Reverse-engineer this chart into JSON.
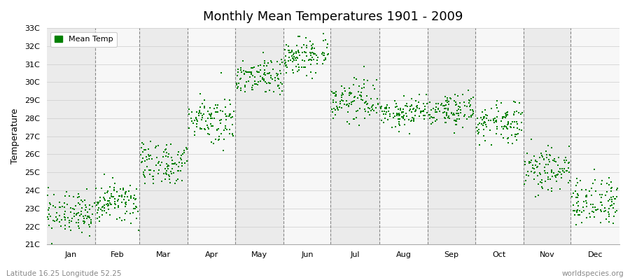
{
  "title": "Monthly Mean Temperatures 1901 - 2009",
  "ylabel": "Temperature",
  "xlabel_labels": [
    "Jan",
    "Feb",
    "Mar",
    "Apr",
    "May",
    "Jun",
    "Jul",
    "Aug",
    "Sep",
    "Oct",
    "Nov",
    "Dec"
  ],
  "ytick_labels": [
    "21C",
    "22C",
    "23C",
    "24C",
    "25C",
    "26C",
    "27C",
    "28C",
    "29C",
    "30C",
    "31C",
    "32C",
    "33C"
  ],
  "ytick_values": [
    21,
    22,
    23,
    24,
    25,
    26,
    27,
    28,
    29,
    30,
    31,
    32,
    33
  ],
  "ylim": [
    21,
    33
  ],
  "xlim": [
    0,
    365
  ],
  "dot_color": "#008000",
  "dot_size": 3,
  "background_color": "#ffffff",
  "band_colors": [
    "#ebebeb",
    "#f7f7f7"
  ],
  "grid_color": "#888888",
  "subtitle_left": "Latitude 16.25 Longitude 52.25",
  "subtitle_right": "worldspecies.org",
  "legend_label": "Mean Temp",
  "monthly_means": [
    22.7,
    23.3,
    25.5,
    28.0,
    30.3,
    31.5,
    29.0,
    28.3,
    28.4,
    27.8,
    25.2,
    23.4
  ],
  "monthly_stds": [
    0.55,
    0.55,
    0.65,
    0.65,
    0.55,
    0.55,
    0.55,
    0.45,
    0.5,
    0.55,
    0.65,
    0.65
  ],
  "n_years": 109,
  "month_days": [
    31,
    28,
    31,
    30,
    31,
    30,
    31,
    31,
    30,
    31,
    30,
    31
  ]
}
